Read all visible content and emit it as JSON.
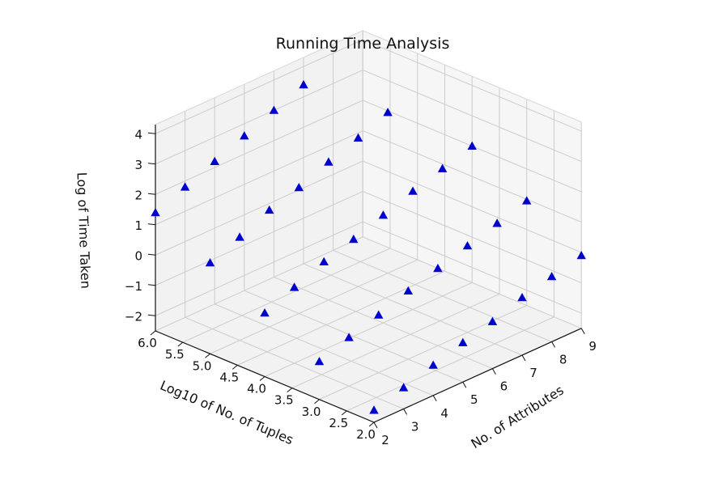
{
  "chart_data": {
    "type": "scatter",
    "projection": "3d",
    "title": "Running Time Analysis",
    "xlabel": "No. of Attributes",
    "ylabel": "Log10 of No. of Tuples",
    "zlabel": "Log of Time Taken",
    "xlim": [
      2,
      9
    ],
    "ylim": [
      2.0,
      6.0
    ],
    "zlim": [
      -2.5,
      4.3
    ],
    "x_ticks": [
      "2",
      "3",
      "4",
      "5",
      "6",
      "7",
      "8",
      "9"
    ],
    "y_ticks": [
      "2.0",
      "2.5",
      "3.0",
      "3.5",
      "4.0",
      "4.5",
      "5.0",
      "5.5",
      "6.0"
    ],
    "z_ticks": [
      "−2",
      "−1",
      "0",
      "1",
      "2",
      "3",
      "4"
    ],
    "grid": true,
    "marker": "triangle",
    "marker_color": "#0000cc",
    "pane_color": "#f2f2f2",
    "grid_color": "#cccccc",
    "points": [
      {
        "x": 2,
        "y": 2,
        "z": -2.1
      },
      {
        "x": 2,
        "y": 3,
        "z": -1.25
      },
      {
        "x": 2,
        "y": 4,
        "z": -0.4
      },
      {
        "x": 2,
        "y": 5,
        "z": 0.5
      },
      {
        "x": 2,
        "y": 6,
        "z": 1.4
      },
      {
        "x": 3,
        "y": 2,
        "z": -1.8
      },
      {
        "x": 3,
        "y": 3,
        "z": -0.9
      },
      {
        "x": 3,
        "y": 4,
        "z": 0.0
      },
      {
        "x": 3,
        "y": 5,
        "z": 0.9
      },
      {
        "x": 3,
        "y": 6,
        "z": 1.8
      },
      {
        "x": 4,
        "y": 2,
        "z": -1.5
      },
      {
        "x": 4,
        "y": 3,
        "z": -0.6
      },
      {
        "x": 4,
        "y": 4,
        "z": 0.4
      },
      {
        "x": 4,
        "y": 5,
        "z": 1.35
      },
      {
        "x": 4,
        "y": 6,
        "z": 2.2
      },
      {
        "x": 5,
        "y": 2,
        "z": -1.2
      },
      {
        "x": 5,
        "y": 3,
        "z": -0.25
      },
      {
        "x": 5,
        "y": 4,
        "z": 0.7
      },
      {
        "x": 5,
        "y": 5,
        "z": 1.65
      },
      {
        "x": 5,
        "y": 6,
        "z": 2.6
      },
      {
        "x": 6,
        "y": 2,
        "z": -0.95
      },
      {
        "x": 6,
        "y": 3,
        "z": 0.05
      },
      {
        "x": 6,
        "y": 4,
        "z": 1.05
      },
      {
        "x": 6,
        "y": 5,
        "z": 2.05
      },
      {
        "x": 6,
        "y": 6,
        "z": 3.0
      },
      {
        "x": 7,
        "y": 2,
        "z": -0.6
      },
      {
        "x": 7,
        "y": 3,
        "z": 0.35
      },
      {
        "x": 7,
        "y": 4,
        "z": 1.4
      },
      {
        "x": 7,
        "y": 5,
        "z": 2.4
      },
      {
        "x": 7,
        "y": 6,
        "z": 3.4
      },
      {
        "x": 8,
        "y": 2,
        "z": -0.35
      },
      {
        "x": 8,
        "y": 3,
        "z": 0.65
      },
      {
        "x": 8,
        "y": 4,
        "z": 1.7
      },
      {
        "x": 8,
        "y": 5,
        "z": 2.8
      },
      {
        "x": 9,
        "y": 2,
        "z": -0.1
      },
      {
        "x": 9,
        "y": 3,
        "z": 0.95
      },
      {
        "x": 9,
        "y": 4,
        "z": 2.0
      }
    ]
  }
}
